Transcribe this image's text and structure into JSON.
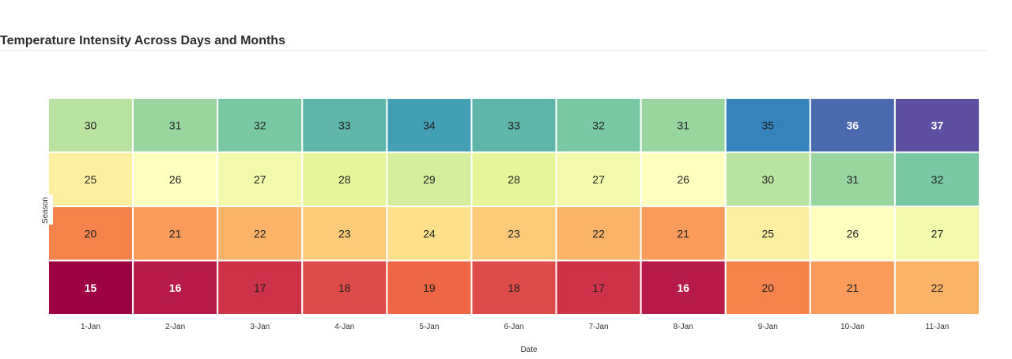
{
  "header": {
    "title": "Temperature Intensity Across Days and Months"
  },
  "chart_data": {
    "type": "heatmap",
    "title": "Temperature Intensity Across Days and Months",
    "xlabel": "Date",
    "ylabel": "Season",
    "x": [
      "1-Jan",
      "2-Jan",
      "3-Jan",
      "4-Jan",
      "5-Jan",
      "6-Jan",
      "7-Jan",
      "8-Jan",
      "9-Jan",
      "10-Jan",
      "11-Jan"
    ],
    "rows": [
      [
        30,
        31,
        32,
        33,
        34,
        33,
        32,
        31,
        35,
        36,
        37
      ],
      [
        25,
        26,
        27,
        28,
        29,
        28,
        27,
        26,
        30,
        31,
        32
      ],
      [
        20,
        21,
        22,
        23,
        24,
        23,
        22,
        21,
        25,
        26,
        27
      ],
      [
        15,
        16,
        17,
        18,
        19,
        18,
        17,
        16,
        20,
        21,
        22
      ]
    ],
    "color_scale": "Spectral",
    "value_range": [
      15,
      37
    ],
    "colors": {
      "15": "#9e0142",
      "16": "#b81a49",
      "17": "#cd3248",
      "18": "#de4b4a",
      "19": "#ee6644",
      "20": "#f6824c",
      "21": "#f99b5a",
      "22": "#fdb367",
      "23": "#fdca79",
      "24": "#fee08b",
      "25": "#feee9f",
      "26": "#ffffbf",
      "27": "#f2f9ab",
      "28": "#e6f598",
      "29": "#d3ed9c",
      "30": "#b9e3a0",
      "31": "#98d59f",
      "32": "#78c8a4",
      "33": "#5db6a9",
      "34": "#429fb4",
      "35": "#3483bd",
      "36": "#4a69ae",
      "37": "#5e4fa2"
    }
  }
}
